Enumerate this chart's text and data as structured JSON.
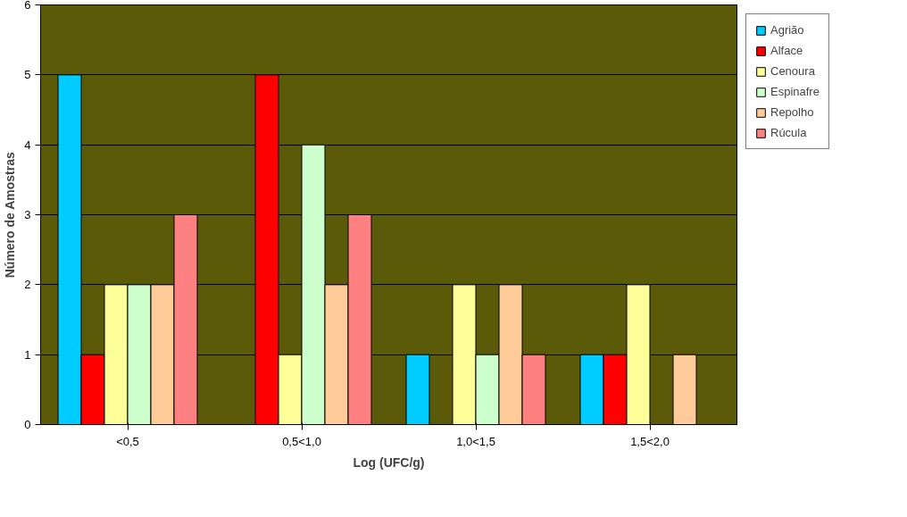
{
  "chart_data": {
    "type": "bar",
    "xlabel": "Log (UFC/g)",
    "ylabel": "Número de Amostras",
    "categories": [
      "<0,5",
      "0,5<1,0",
      "1,0<1,5",
      "1,5<2,0"
    ],
    "series": [
      {
        "name": "Agrião",
        "color": "#00ccff",
        "values": [
          5,
          0,
          1,
          1
        ]
      },
      {
        "name": "Alface",
        "color": "#ff0000",
        "values": [
          1,
          5,
          0,
          1
        ]
      },
      {
        "name": "Cenoura",
        "color": "#ffff99",
        "values": [
          2,
          1,
          2,
          2
        ]
      },
      {
        "name": "Espinafre",
        "color": "#ccffcc",
        "values": [
          2,
          4,
          1,
          0
        ]
      },
      {
        "name": "Repolho",
        "color": "#ffcc99",
        "values": [
          2,
          2,
          2,
          1
        ]
      },
      {
        "name": "Rúcula",
        "color": "#ff8080",
        "values": [
          3,
          3,
          1,
          0
        ]
      }
    ],
    "ylim": [
      0,
      6
    ],
    "yticks": [
      0,
      1,
      2,
      3,
      4,
      5,
      6
    ],
    "grid": "y",
    "legend": "right"
  }
}
